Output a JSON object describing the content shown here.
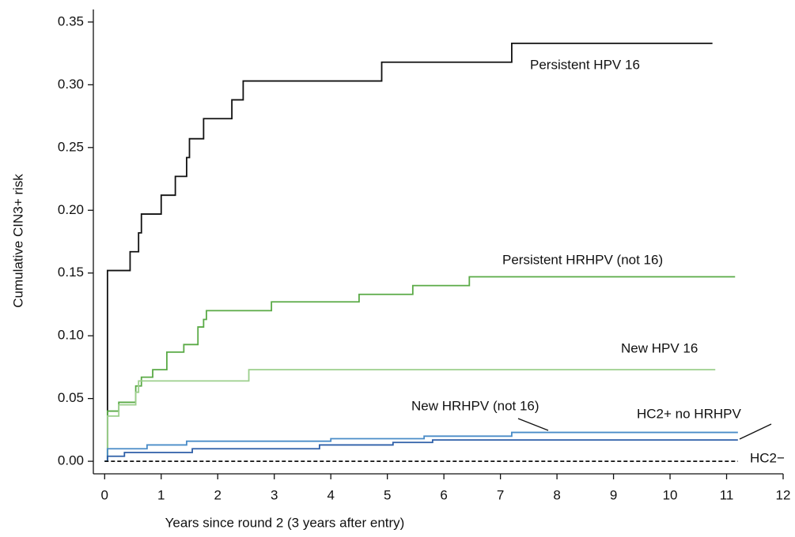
{
  "chart_data": {
    "type": "step",
    "xlabel": "Years since round 2 (3 years after entry)",
    "ylabel": "Cumulative CIN3+ risk",
    "xlim": [
      -0.2,
      12
    ],
    "ylim": [
      -0.01,
      0.36
    ],
    "xticks": [
      0,
      1,
      2,
      3,
      4,
      5,
      6,
      7,
      8,
      9,
      10,
      11,
      12
    ],
    "yticks": [
      {
        "value": 0,
        "label": "0.00"
      },
      0.05,
      {
        "value": 0.1,
        "label": "0.10"
      },
      0.15,
      {
        "value": 0.2,
        "label": "0.20"
      },
      0.25,
      {
        "value": 0.3,
        "label": "0.30"
      },
      0.35
    ],
    "series": [
      {
        "name": "Persistent HPV 16",
        "color": "#111111",
        "x": [
          0,
          0.05,
          0.45,
          0.6,
          0.65,
          1.0,
          1.25,
          1.45,
          1.5,
          1.75,
          2.25,
          2.45,
          4.9,
          7.2,
          10.75
        ],
        "values": [
          0,
          0.152,
          0.167,
          0.182,
          0.197,
          0.212,
          0.227,
          0.242,
          0.257,
          0.273,
          0.288,
          0.303,
          0.318,
          0.333,
          0.333
        ]
      },
      {
        "name": "Persistent HRHPV (not 16)",
        "color": "#5aaa46",
        "x": [
          0,
          0.05,
          0.25,
          0.55,
          0.65,
          0.85,
          1.1,
          1.4,
          1.65,
          1.75,
          1.8,
          2.95,
          4.5,
          5.45,
          6.45,
          11.15
        ],
        "values": [
          0,
          0.04,
          0.047,
          0.06,
          0.067,
          0.073,
          0.087,
          0.093,
          0.107,
          0.113,
          0.12,
          0.127,
          0.133,
          0.14,
          0.147,
          0.147
        ]
      },
      {
        "name": "New HPV 16",
        "color": "#9ccf8c",
        "x": [
          0,
          0.05,
          0.25,
          0.55,
          0.6,
          2.55,
          10.8
        ],
        "values": [
          0,
          0.036,
          0.045,
          0.055,
          0.064,
          0.073,
          0.073
        ]
      },
      {
        "name": "New HRHPV (not 16)",
        "color": "#4a8cc8",
        "x": [
          0,
          0.05,
          0.75,
          1.45,
          4.0,
          5.65,
          7.2,
          11.2
        ],
        "values": [
          0,
          0.01,
          0.013,
          0.016,
          0.018,
          0.02,
          0.023,
          0.023
        ]
      },
      {
        "name": "HC2+ no HRHPV",
        "color": "#2e5fa8",
        "x": [
          0,
          0.05,
          0.35,
          1.55,
          3.8,
          5.1,
          5.8,
          11.2
        ],
        "values": [
          0,
          0.004,
          0.007,
          0.01,
          0.013,
          0.015,
          0.017,
          0.017
        ]
      },
      {
        "name": "HC2−",
        "color": "#111111",
        "dashed": true,
        "x": [
          0,
          11.2
        ],
        "values": [
          0,
          0
        ]
      }
    ]
  }
}
